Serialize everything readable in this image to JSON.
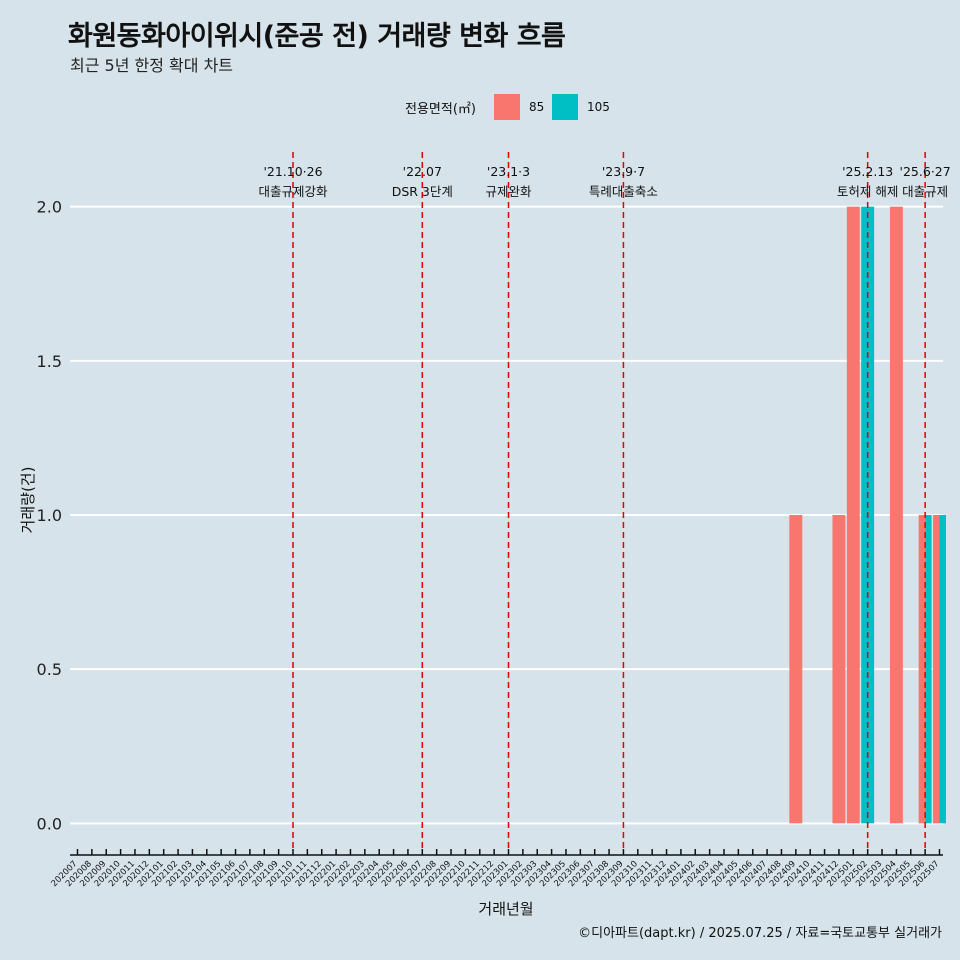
{
  "chart_data": {
    "type": "bar",
    "title": "화원동화아이위시(준공 전) 거래량 변화 흐름",
    "subtitle": "최근 5년 한정 확대 차트",
    "xlabel": "거래년월",
    "ylabel": "거래량(건)",
    "ylim": [
      -0.08,
      2.2
    ],
    "yticks": [
      "0.0",
      "0.5",
      "1.0",
      "1.5",
      "2.0"
    ],
    "legend": {
      "title": "전용면적(㎡)",
      "position": "top"
    },
    "categories": [
      "202007",
      "202008",
      "202009",
      "202010",
      "202011",
      "202012",
      "202101",
      "202102",
      "202103",
      "202104",
      "202105",
      "202106",
      "202107",
      "202108",
      "202109",
      "202110",
      "202111",
      "202112",
      "202201",
      "202202",
      "202203",
      "202204",
      "202205",
      "202206",
      "202207",
      "202208",
      "202209",
      "202210",
      "202211",
      "202212",
      "202301",
      "202302",
      "202303",
      "202304",
      "202305",
      "202306",
      "202307",
      "202308",
      "202309",
      "202310",
      "202311",
      "202312",
      "202401",
      "202402",
      "202403",
      "202404",
      "202405",
      "202406",
      "202407",
      "202408",
      "202409",
      "202410",
      "202411",
      "202412",
      "202501",
      "202502",
      "202503",
      "202504",
      "202505",
      "202506",
      "202507"
    ],
    "series": [
      {
        "name": "85",
        "color": "#f8766d",
        "points": [
          {
            "x": "202409",
            "y": 1
          },
          {
            "x": "202412",
            "y": 1
          },
          {
            "x": "202501",
            "y": 2
          },
          {
            "x": "202504",
            "y": 2
          },
          {
            "x": "202506",
            "y": 1
          },
          {
            "x": "202507",
            "y": 1
          }
        ]
      },
      {
        "name": "105",
        "color": "#00bfc4",
        "points": [
          {
            "x": "202502",
            "y": 2
          },
          {
            "x": "202506",
            "y": 1
          },
          {
            "x": "202507",
            "y": 1
          }
        ]
      }
    ],
    "events": [
      {
        "x": "202110",
        "date": "'21.10·26",
        "label": "대출규제강화"
      },
      {
        "x": "202207",
        "date": "'22.07",
        "label": "DSR 3단계"
      },
      {
        "x": "202301",
        "date": "'23.1·3",
        "label": "규제완화"
      },
      {
        "x": "202309",
        "date": "'23.9·7",
        "label": "특례대출축소"
      },
      {
        "x": "202502",
        "date": "'25.2.13",
        "label": "토허제 해제"
      },
      {
        "x": "202506",
        "date": "'25.6·27",
        "label": "대출규제"
      }
    ],
    "event_color": "#e00000",
    "grid": true
  },
  "caption": "©디아파트(dapt.kr) / 2025.07.25 / 자료=국토교통부 실거래가"
}
